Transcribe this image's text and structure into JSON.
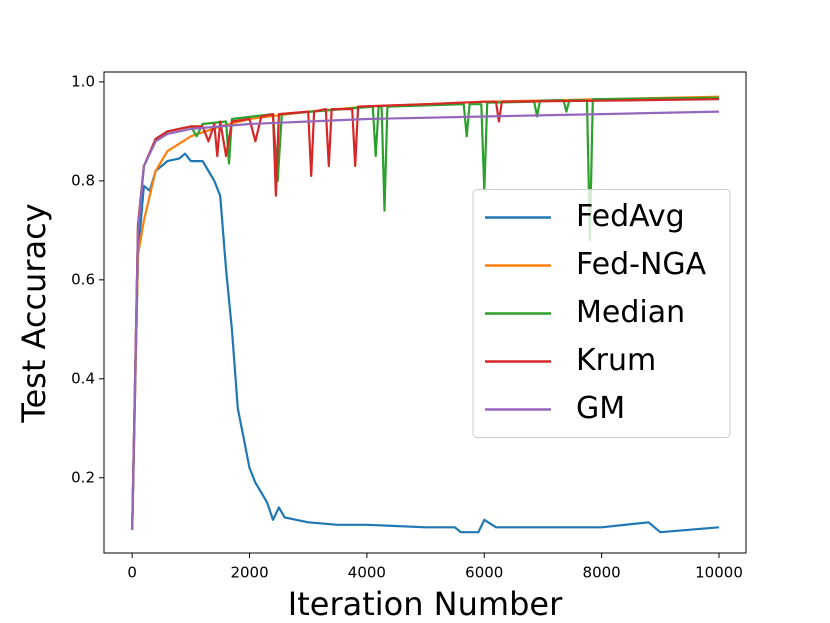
{
  "chart_data": {
    "type": "line",
    "xlabel": "Iteration Number",
    "ylabel": "Test Accuracy",
    "xlim": [
      -480,
      10460
    ],
    "ylim": [
      0.048,
      1.02
    ],
    "xticks": [
      0,
      2000,
      4000,
      6000,
      8000,
      10000
    ],
    "yticks": [
      0.2,
      0.4,
      0.6,
      0.8,
      {
        "value": 1,
        "label": "1.0"
      }
    ],
    "legend": "center right",
    "series": [
      {
        "name": "FedAvg",
        "color": "#1f77b4",
        "x": [
          0,
          100,
          200,
          300,
          400,
          600,
          800,
          900,
          1000,
          1200,
          1300,
          1400,
          1500,
          1600,
          1700,
          1800,
          1900,
          2000,
          2100,
          2200,
          2300,
          2400,
          2500,
          2600,
          3000,
          3500,
          4000,
          5000,
          5500,
          5600,
          5700,
          5900,
          6000,
          6200,
          7000,
          8000,
          8800,
          9000,
          10000
        ],
        "values": [
          0.095,
          0.65,
          0.79,
          0.78,
          0.82,
          0.84,
          0.845,
          0.855,
          0.84,
          0.84,
          0.82,
          0.8,
          0.77,
          0.62,
          0.5,
          0.34,
          0.28,
          0.22,
          0.19,
          0.17,
          0.15,
          0.115,
          0.14,
          0.12,
          0.11,
          0.105,
          0.105,
          0.1,
          0.1,
          0.09,
          0.09,
          0.09,
          0.115,
          0.1,
          0.1,
          0.1,
          0.11,
          0.09,
          0.1
        ]
      },
      {
        "name": "Fed-NGA",
        "color": "#ff7f0e",
        "x": [
          0,
          100,
          200,
          400,
          600,
          1000,
          1500,
          2000,
          3000,
          4000,
          5000,
          6000,
          8000,
          10000
        ],
        "values": [
          0.095,
          0.65,
          0.72,
          0.82,
          0.86,
          0.89,
          0.91,
          0.925,
          0.94,
          0.95,
          0.955,
          0.96,
          0.965,
          0.97
        ]
      },
      {
        "name": "Median",
        "color": "#2ca02c",
        "x": [
          0,
          100,
          200,
          400,
          600,
          1000,
          1100,
          1200,
          1600,
          1650,
          1700,
          2400,
          2480,
          2550,
          4100,
          4150,
          4200,
          4250,
          4300,
          4350,
          5650,
          5700,
          5750,
          5950,
          6000,
          6050,
          6850,
          6900,
          6950,
          7350,
          7400,
          7450,
          7750,
          7800,
          7850,
          10000
        ],
        "values": [
          0.095,
          0.71,
          0.83,
          0.88,
          0.9,
          0.91,
          0.89,
          0.915,
          0.92,
          0.835,
          0.925,
          0.935,
          0.8,
          0.935,
          0.95,
          0.85,
          0.95,
          0.95,
          0.74,
          0.95,
          0.955,
          0.89,
          0.955,
          0.955,
          0.78,
          0.958,
          0.96,
          0.93,
          0.962,
          0.963,
          0.94,
          0.963,
          0.963,
          0.68,
          0.965,
          0.968
        ]
      },
      {
        "name": "Krum",
        "color": "#d62728",
        "x": [
          0,
          100,
          200,
          400,
          600,
          1000,
          1200,
          1300,
          1400,
          1450,
          1500,
          1600,
          1700,
          2000,
          2100,
          2200,
          2400,
          2450,
          2500,
          3000,
          3050,
          3100,
          3300,
          3350,
          3400,
          3750,
          3800,
          3850,
          5000,
          6000,
          6200,
          6250,
          6300,
          8000,
          10000
        ],
        "values": [
          0.095,
          0.71,
          0.83,
          0.885,
          0.9,
          0.91,
          0.91,
          0.88,
          0.915,
          0.85,
          0.92,
          0.85,
          0.92,
          0.925,
          0.88,
          0.93,
          0.935,
          0.77,
          0.935,
          0.94,
          0.81,
          0.94,
          0.945,
          0.83,
          0.945,
          0.945,
          0.83,
          0.95,
          0.955,
          0.96,
          0.96,
          0.92,
          0.96,
          0.962,
          0.965
        ]
      },
      {
        "name": "GM",
        "color": "#9467bd",
        "x": [
          0,
          100,
          200,
          400,
          600,
          1000,
          2000,
          4000,
          6000,
          8000,
          10000
        ],
        "values": [
          0.095,
          0.7,
          0.83,
          0.88,
          0.895,
          0.905,
          0.915,
          0.925,
          0.93,
          0.935,
          0.94
        ]
      }
    ]
  }
}
